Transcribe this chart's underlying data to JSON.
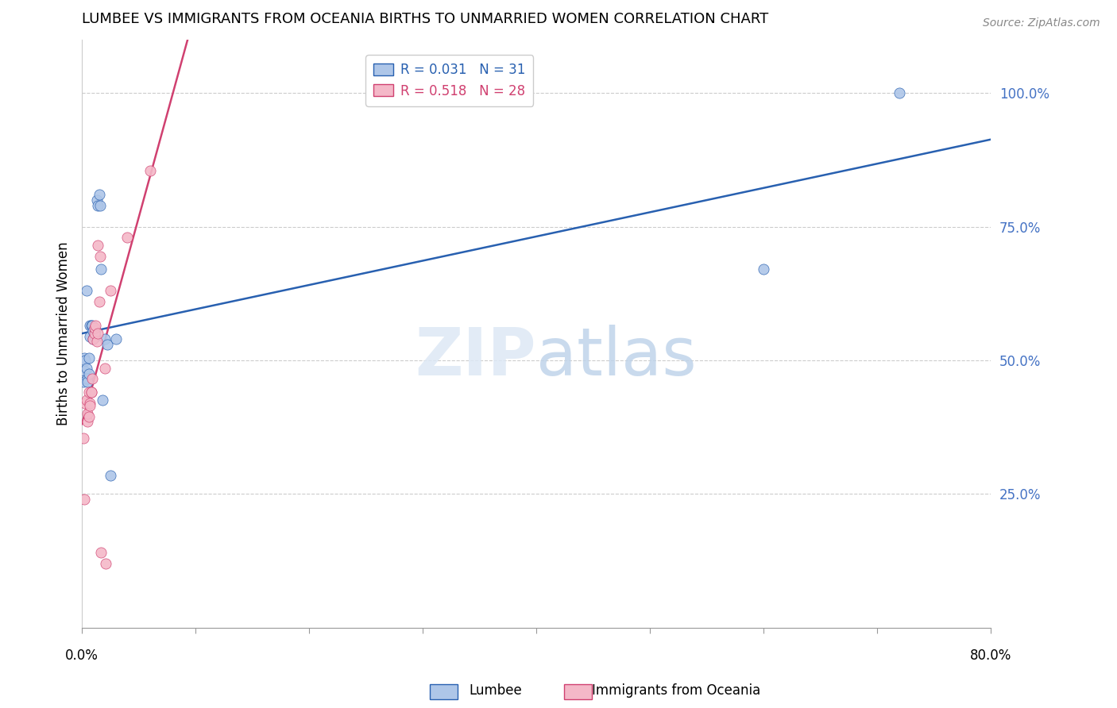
{
  "title": "LUMBEE VS IMMIGRANTS FROM OCEANIA BIRTHS TO UNMARRIED WOMEN CORRELATION CHART",
  "source": "Source: ZipAtlas.com",
  "ylabel": "Births to Unmarried Women",
  "ytick_labels": [
    "25.0%",
    "50.0%",
    "75.0%",
    "100.0%"
  ],
  "ytick_values": [
    0.25,
    0.5,
    0.75,
    1.0
  ],
  "legend_lumbee_r": "R = 0.031",
  "legend_lumbee_n": "N = 31",
  "legend_oceania_r": "R = 0.518",
  "legend_oceania_n": "N = 28",
  "lumbee_color": "#aec6e8",
  "oceania_color": "#f4b8c8",
  "lumbee_line_color": "#2860b0",
  "oceania_line_color": "#d04070",
  "lumbee_label": "Lumbee",
  "oceania_label": "Immigrants from Oceania",
  "lumbee_x": [
    0.001,
    0.002,
    0.002,
    0.003,
    0.004,
    0.004,
    0.005,
    0.005,
    0.006,
    0.006,
    0.007,
    0.007,
    0.008,
    0.009,
    0.01,
    0.01,
    0.011,
    0.012,
    0.012,
    0.013,
    0.014,
    0.015,
    0.016,
    0.017,
    0.018,
    0.02,
    0.022,
    0.025,
    0.03,
    0.6,
    0.72
  ],
  "lumbee_y": [
    0.46,
    0.48,
    0.505,
    0.5,
    0.63,
    0.485,
    0.465,
    0.46,
    0.475,
    0.505,
    0.545,
    0.565,
    0.565,
    0.565,
    0.555,
    0.54,
    0.545,
    0.545,
    0.555,
    0.8,
    0.79,
    0.81,
    0.79,
    0.67,
    0.425,
    0.54,
    0.53,
    0.285,
    0.54,
    0.67,
    1.0
  ],
  "oceania_x": [
    0.001,
    0.002,
    0.003,
    0.004,
    0.005,
    0.005,
    0.006,
    0.006,
    0.007,
    0.007,
    0.008,
    0.008,
    0.009,
    0.01,
    0.011,
    0.011,
    0.012,
    0.013,
    0.014,
    0.014,
    0.015,
    0.016,
    0.017,
    0.02,
    0.021,
    0.025,
    0.04,
    0.06
  ],
  "oceania_y": [
    0.355,
    0.24,
    0.42,
    0.425,
    0.385,
    0.4,
    0.44,
    0.395,
    0.42,
    0.415,
    0.44,
    0.44,
    0.465,
    0.54,
    0.55,
    0.56,
    0.565,
    0.535,
    0.55,
    0.715,
    0.61,
    0.695,
    0.14,
    0.485,
    0.12,
    0.63,
    0.73,
    0.855
  ],
  "xlim": [
    0.0,
    0.8
  ],
  "ylim": [
    0.0,
    1.1
  ],
  "watermark_zip": "ZIP",
  "watermark_atlas": "atlas"
}
